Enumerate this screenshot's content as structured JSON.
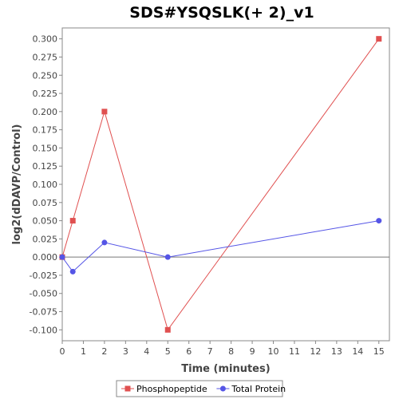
{
  "chart_data": {
    "type": "line",
    "title": "SDS#YSQSLK(+ 2)_v1",
    "xlabel": "Time (minutes)",
    "ylabel": "log2(dDAVP/Control)",
    "xlim": [
      0,
      15.5
    ],
    "ylim": [
      -0.115,
      0.315
    ],
    "xticks": [
      0,
      1,
      2,
      3,
      4,
      5,
      6,
      7,
      8,
      9,
      10,
      11,
      12,
      13,
      14,
      15
    ],
    "yticks": [
      -0.1,
      -0.075,
      -0.05,
      -0.025,
      0.0,
      0.025,
      0.05,
      0.075,
      0.1,
      0.125,
      0.15,
      0.175,
      0.2,
      0.225,
      0.25,
      0.275,
      0.3
    ],
    "grid": false,
    "zero_line": true,
    "legend_position": "bottom",
    "series": [
      {
        "name": "Phosphopeptide",
        "color": "#e05050",
        "marker": "square",
        "x": [
          0,
          0.5,
          2,
          5,
          15
        ],
        "y": [
          0.0,
          0.05,
          0.2,
          -0.1,
          0.3
        ]
      },
      {
        "name": "Total Protein",
        "color": "#5555e6",
        "marker": "circle",
        "x": [
          0,
          0.5,
          2,
          5,
          15
        ],
        "y": [
          0.0,
          -0.02,
          0.02,
          0.0,
          0.05
        ]
      }
    ]
  }
}
